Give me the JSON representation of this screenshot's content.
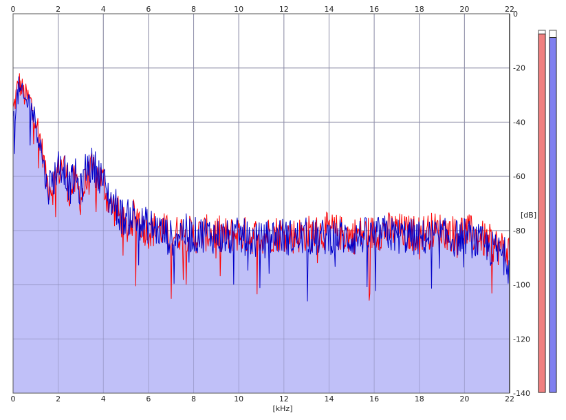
{
  "chart_data": {
    "type": "line",
    "title": "",
    "xlabel": "[kHz]",
    "ylabel": "[dB]",
    "xlim": [
      0,
      22
    ],
    "ylim": [
      -140,
      0
    ],
    "x_ticks": [
      0,
      2,
      4,
      6,
      8,
      10,
      12,
      14,
      16,
      18,
      20,
      22
    ],
    "y_ticks": [
      0,
      -20,
      -40,
      -60,
      -80,
      -100,
      -120,
      -140
    ],
    "grid": true,
    "fill_color": "#c0c0f8",
    "grid_color": "#9a9a9a",
    "series": [
      {
        "color": "#ff0000",
        "x": [
          0,
          0.25,
          0.5,
          0.75,
          1,
          1.25,
          1.5,
          1.75,
          2,
          2.25,
          2.5,
          2.75,
          3,
          3.25,
          3.5,
          3.75,
          4,
          4.25,
          4.5,
          4.75,
          5,
          5.25,
          5.5,
          5.75,
          6,
          6.5,
          7,
          7.5,
          8,
          8.5,
          9,
          9.5,
          10,
          10.5,
          11,
          11.5,
          12,
          12.5,
          13,
          13.5,
          14,
          14.5,
          15,
          15.5,
          16,
          16.5,
          17,
          17.5,
          18,
          18.5,
          19,
          19.5,
          20,
          20.5,
          21,
          21.5,
          22
        ],
        "y": [
          -36,
          -25,
          -30,
          -32,
          -38,
          -48,
          -62,
          -64,
          -58,
          -55,
          -66,
          -62,
          -68,
          -62,
          -58,
          -60,
          -62,
          -70,
          -72,
          -75,
          -80,
          -76,
          -74,
          -78,
          -80,
          -79,
          -82,
          -80,
          -82,
          -81,
          -81,
          -82,
          -81,
          -82,
          -82,
          -81,
          -81,
          -82,
          -81,
          -81,
          -80,
          -81,
          -82,
          -81,
          -81,
          -80,
          -80,
          -81,
          -81,
          -80,
          -80,
          -81,
          -80,
          -82,
          -84,
          -86,
          -88
        ]
      },
      {
        "color": "#0000c8",
        "x": [
          0,
          0.25,
          0.5,
          0.75,
          1,
          1.25,
          1.5,
          1.75,
          2,
          2.25,
          2.5,
          2.75,
          3,
          3.25,
          3.5,
          3.75,
          4,
          4.25,
          4.5,
          4.75,
          5,
          5.25,
          5.5,
          5.75,
          6,
          6.5,
          7,
          7.5,
          8,
          8.5,
          9,
          9.5,
          10,
          10.5,
          11,
          11.5,
          12,
          12.5,
          13,
          13.5,
          14,
          14.5,
          15,
          15.5,
          16,
          16.5,
          17,
          17.5,
          18,
          18.5,
          19,
          19.5,
          20,
          20.5,
          21,
          21.5,
          22
        ],
        "y": [
          -40,
          -28,
          -32,
          -33,
          -40,
          -50,
          -64,
          -62,
          -56,
          -56,
          -64,
          -60,
          -66,
          -56,
          -56,
          -58,
          -62,
          -68,
          -70,
          -74,
          -76,
          -74,
          -76,
          -78,
          -78,
          -80,
          -83,
          -80,
          -82,
          -81,
          -82,
          -83,
          -82,
          -83,
          -84,
          -82,
          -82,
          -83,
          -82,
          -83,
          -82,
          -82,
          -83,
          -82,
          -82,
          -81,
          -82,
          -82,
          -83,
          -82,
          -82,
          -83,
          -82,
          -84,
          -86,
          -88,
          -90
        ]
      }
    ]
  },
  "meters": [
    {
      "color": "#f08080",
      "level": 0.99
    },
    {
      "color": "#8080f0",
      "level": 0.98
    }
  ]
}
